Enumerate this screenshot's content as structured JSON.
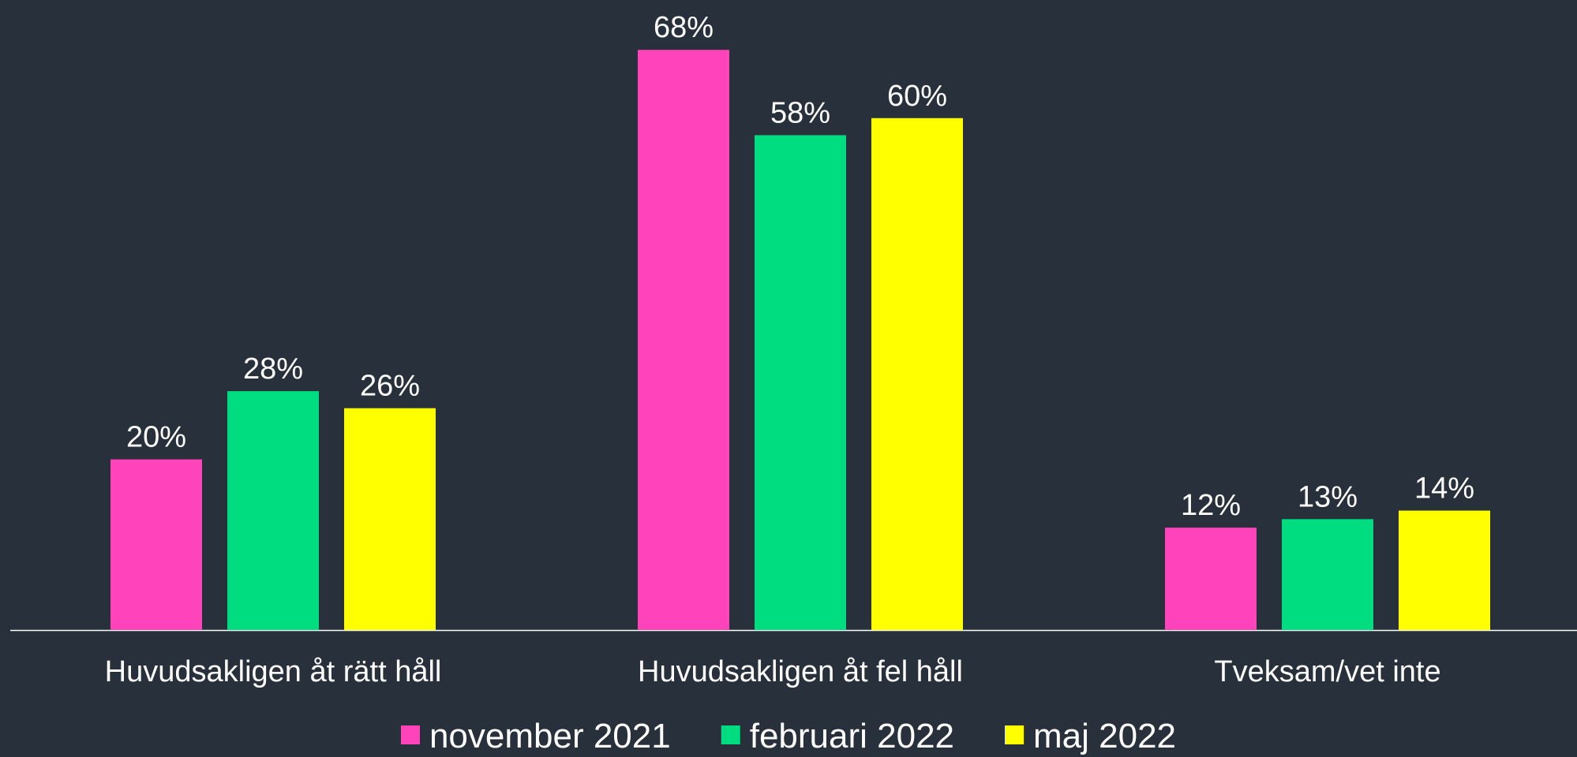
{
  "chart_data": {
    "type": "bar",
    "categories": [
      "Huvudsakligen åt rätt håll",
      "Huvudsakligen åt fel håll",
      "Tveksam/vet inte"
    ],
    "series": [
      {
        "name": "november 2021",
        "color": "#ff44bb",
        "values": [
          20,
          68,
          12
        ],
        "value_labels": [
          "20%",
          "68%",
          "12%"
        ]
      },
      {
        "name": "februari 2022",
        "color": "#00dd80",
        "values": [
          28,
          58,
          13
        ],
        "value_labels": [
          "28%",
          "58%",
          "13%"
        ]
      },
      {
        "name": "maj 2022",
        "color": "#ffff00",
        "values": [
          26,
          60,
          14
        ],
        "value_labels": [
          "26%",
          "60%",
          "14%"
        ]
      }
    ],
    "legend": "bottom"
  }
}
